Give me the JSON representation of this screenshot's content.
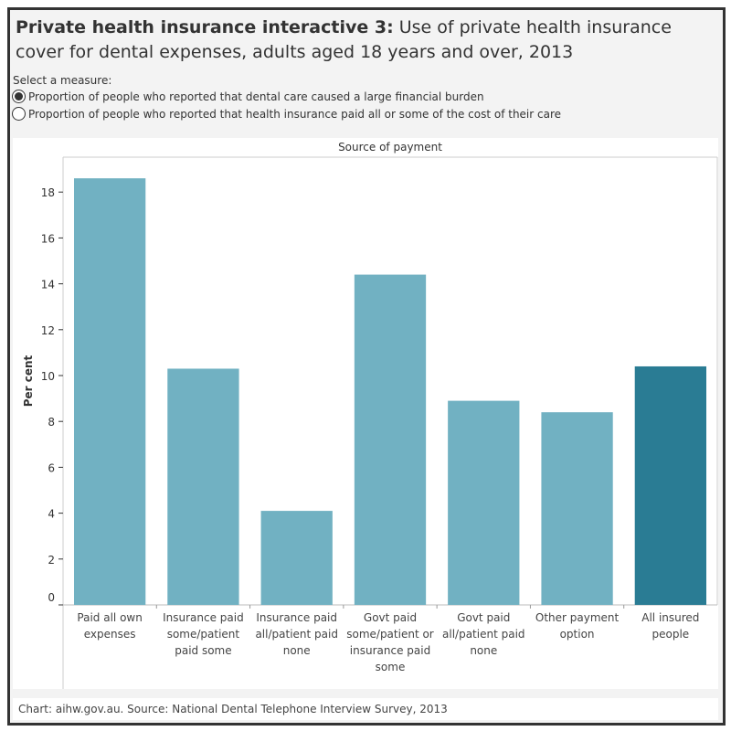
{
  "title_bold": "Private health insurance interactive 3:",
  "title_rest": " Use of private health insurance cover for dental expenses, adults aged 18 years and over, 2013",
  "measure": {
    "label": "Select a measure:",
    "options": [
      {
        "label": "Proportion of people who reported that dental care caused a large financial burden",
        "selected": true
      },
      {
        "label": "Proportion of people who reported that health insurance paid all or some of the cost of their care",
        "selected": false
      }
    ]
  },
  "footer": "Chart: aihw.gov.au. Source: National Dental Telephone Interview Survey, 2013",
  "chart_data": {
    "type": "bar",
    "title": "Source of payment",
    "xlabel": "",
    "ylabel": "Per cent",
    "ylim": [
      0,
      19.4
    ],
    "yticks": [
      0,
      2,
      4,
      6,
      8,
      10,
      12,
      14,
      16,
      18
    ],
    "grid": false,
    "categories": [
      [
        "Paid all own",
        "expenses"
      ],
      [
        "Insurance paid",
        "some/patient",
        "paid some"
      ],
      [
        "Insurance paid",
        "all/patient paid",
        "none"
      ],
      [
        "Govt paid",
        "some/patient or",
        "insurance paid",
        "some"
      ],
      [
        "Govt paid",
        "all/patient paid",
        "none"
      ],
      [
        "Other payment",
        "option"
      ],
      [
        "All insured",
        "people"
      ]
    ],
    "values": [
      18.6,
      10.3,
      4.1,
      14.4,
      8.9,
      8.4,
      10.4
    ],
    "colors": [
      "#71b1c2",
      "#71b1c2",
      "#71b1c2",
      "#71b1c2",
      "#71b1c2",
      "#71b1c2",
      "#2a7c94"
    ]
  }
}
